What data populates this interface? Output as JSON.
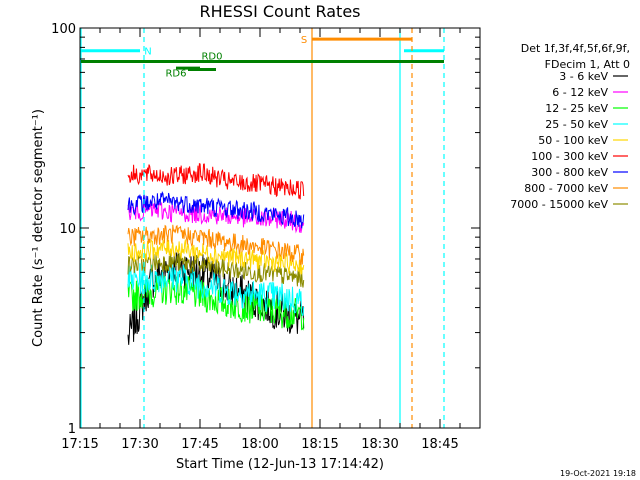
{
  "chart_data": {
    "type": "line",
    "title": "RHESSI Count Rates",
    "xlabel": "Start Time (12-Jun-13 17:14:42)",
    "ylabel": "Count Rate (s⁻¹ detector segment⁻¹)",
    "yscale": "log",
    "xlim": [
      "17:15",
      "18:55"
    ],
    "ylim": [
      1,
      100
    ],
    "x_ticks": [
      "17:15",
      "17:30",
      "17:45",
      "18:00",
      "18:15",
      "18:30",
      "18:45"
    ],
    "y_ticks": [
      "1",
      "10",
      "100"
    ],
    "legend_header": [
      "Det 1f,3f,4f,5f,6f,9f,",
      "FDecim 1, Att 0"
    ],
    "legend_position": "right",
    "data_window": [
      "17:27",
      "18:11"
    ],
    "series": [
      {
        "name": "3 - 6 keV",
        "color": "#000000",
        "x": [
          "17:27",
          "17:33",
          "17:38",
          "17:45",
          "17:52",
          "18:00",
          "18:05",
          "18:11"
        ],
        "values": [
          2.8,
          5.5,
          6.5,
          6.0,
          5.0,
          4.3,
          3.8,
          3.4
        ]
      },
      {
        "name": "6 - 12 keV",
        "color": "#ff00ff",
        "x": [
          "17:27",
          "17:33",
          "17:38",
          "17:45",
          "17:52",
          "18:00",
          "18:05",
          "18:11"
        ],
        "values": [
          12.0,
          12.3,
          12.0,
          11.8,
          11.5,
          11.0,
          11.2,
          10.5
        ]
      },
      {
        "name": "12 - 25 keV",
        "color": "#00ff00",
        "x": [
          "17:27",
          "17:33",
          "17:38",
          "17:45",
          "17:52",
          "18:00",
          "18:05",
          "18:11"
        ],
        "values": [
          4.5,
          4.8,
          5.0,
          4.6,
          4.2,
          3.9,
          3.8,
          3.7
        ]
      },
      {
        "name": "25 - 50 keV",
        "color": "#00ffff",
        "x": [
          "17:27",
          "17:33",
          "17:38",
          "17:45",
          "17:52",
          "18:00",
          "18:05",
          "18:11"
        ],
        "values": [
          5.5,
          5.6,
          5.8,
          5.3,
          4.9,
          4.6,
          4.5,
          4.3
        ]
      },
      {
        "name": "50 - 100 keV",
        "color": "#ffd700",
        "x": [
          "17:27",
          "17:33",
          "17:38",
          "17:45",
          "17:52",
          "18:00",
          "18:05",
          "18:11"
        ],
        "values": [
          7.5,
          7.8,
          8.0,
          7.6,
          7.2,
          6.9,
          6.7,
          6.5
        ]
      },
      {
        "name": "100 - 300 keV",
        "color": "#ff0000",
        "x": [
          "17:27",
          "17:33",
          "17:38",
          "17:45",
          "17:52",
          "18:00",
          "18:05",
          "18:11"
        ],
        "values": [
          18.5,
          18.5,
          18.0,
          19.0,
          17.0,
          16.5,
          16.0,
          15.5
        ]
      },
      {
        "name": "300 - 800 keV",
        "color": "#0000ff",
        "x": [
          "17:27",
          "17:33",
          "17:38",
          "17:45",
          "17:52",
          "18:00",
          "18:05",
          "18:11"
        ],
        "values": [
          13.0,
          13.5,
          13.5,
          13.0,
          12.5,
          12.0,
          11.5,
          11.0
        ]
      },
      {
        "name": "800 - 7000 keV",
        "color": "#ff8c00",
        "x": [
          "17:27",
          "17:33",
          "17:38",
          "17:45",
          "17:52",
          "18:00",
          "18:05",
          "18:11"
        ],
        "values": [
          9.0,
          9.2,
          9.3,
          9.0,
          8.5,
          8.0,
          7.7,
          7.3
        ]
      },
      {
        "name": "7000 - 15000 keV",
        "color": "#8b8b00",
        "x": [
          "17:27",
          "17:33",
          "17:38",
          "17:45",
          "17:52",
          "18:00",
          "18:05",
          "18:11"
        ],
        "values": [
          6.5,
          6.7,
          6.8,
          6.5,
          6.2,
          6.0,
          5.8,
          5.6
        ]
      }
    ],
    "annotations": [
      {
        "label": "N",
        "color": "#00ffff",
        "bars": [
          [
            "17:15",
            "17:30"
          ],
          [
            "18:36",
            "18:46"
          ]
        ],
        "level": 77,
        "vlines_solid": [
          "17:15",
          "18:35"
        ],
        "vlines_dashed": [
          "17:31",
          "18:46"
        ]
      },
      {
        "label": "S",
        "color": "#ff8c00",
        "bars": [
          [
            "18:13",
            "18:38"
          ]
        ],
        "level": 88,
        "vlines_solid": [
          "18:13"
        ],
        "vlines_dashed": [
          "18:38"
        ]
      },
      {
        "label": "RD0",
        "color": "#008000",
        "bars": [
          [
            "17:15",
            "18:46"
          ],
          [
            "17:39",
            "17:45"
          ]
        ],
        "level": 68
      },
      {
        "label": "RD6",
        "color": "#008000",
        "bars": [
          [
            "17:42",
            "17:49"
          ]
        ],
        "level": 62
      }
    ]
  },
  "footer_timestamp": "19-Oct-2021 19:18"
}
